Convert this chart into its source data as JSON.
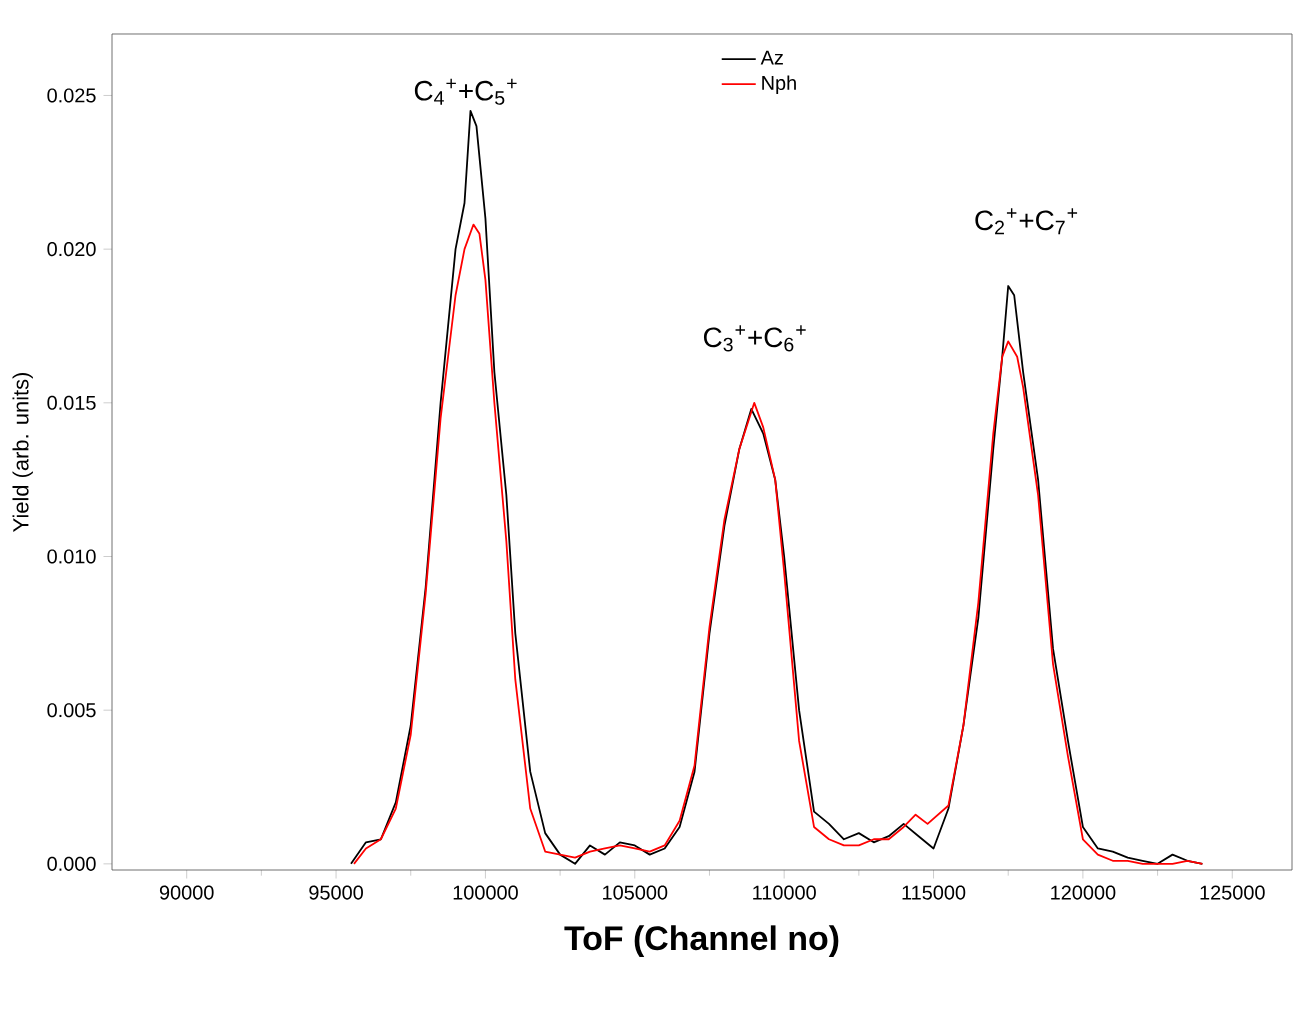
{
  "chart_data": {
    "type": "line",
    "xlabel": "ToF (Channel no)",
    "ylabel": "Yield (arb. units)",
    "xlim": [
      87500,
      127000
    ],
    "ylim": [
      -0.0002,
      0.027
    ],
    "xticks": [
      90000,
      95000,
      100000,
      105000,
      110000,
      115000,
      120000,
      125000
    ],
    "yticks": [
      {
        "value": 0,
        "label": "0.000"
      },
      {
        "value": 0.005,
        "label": "0.005"
      },
      {
        "value": 0.01,
        "label": "0.010"
      },
      {
        "value": 0.015,
        "label": "0.015"
      },
      {
        "value": 0.02,
        "label": "0.020"
      },
      {
        "value": 0.025,
        "label": "0.025"
      }
    ],
    "legend": "top",
    "grid": false,
    "marker": "none",
    "line_style": "solid",
    "annotations": [
      "C$_{4}$$^{+}$+C$_{5}$$^{+}$",
      "C$_{3}$$^{+}$+C$_{6}$$^{+}$",
      "C$_{2}$$^{+}$+C$_{7}$$^{+}$"
    ],
    "series": [
      {
        "name": "Az",
        "color": "#000000",
        "x": [
          95500,
          96000,
          96500,
          97000,
          97500,
          98000,
          98500,
          99000,
          99300,
          99500,
          99700,
          100000,
          100300,
          100700,
          101000,
          101500,
          102000,
          102500,
          103000,
          103500,
          104000,
          104500,
          105000,
          105500,
          106000,
          106500,
          107000,
          107500,
          108000,
          108500,
          108900,
          109300,
          109700,
          110000,
          110500,
          111000,
          111500,
          112000,
          112500,
          113000,
          113500,
          114000,
          114500,
          115000,
          115500,
          116000,
          116500,
          117000,
          117300,
          117500,
          117700,
          118000,
          118500,
          119000,
          119500,
          120000,
          120500,
          121000,
          121500,
          122000,
          122500,
          123000,
          123500,
          124000
        ],
        "values": [
          0,
          0.0007,
          0.0008,
          0.002,
          0.0045,
          0.009,
          0.015,
          0.02,
          0.0215,
          0.0245,
          0.024,
          0.021,
          0.016,
          0.012,
          0.0075,
          0.003,
          0.001,
          0.0003,
          0,
          0.0006,
          0.0003,
          0.0007,
          0.0006,
          0.0003,
          0.0005,
          0.0012,
          0.003,
          0.0075,
          0.011,
          0.0135,
          0.0148,
          0.014,
          0.0125,
          0.01,
          0.005,
          0.0017,
          0.0013,
          0.0008,
          0.001,
          0.0007,
          0.0009,
          0.0013,
          0.0009,
          0.0005,
          0.0018,
          0.0045,
          0.008,
          0.0135,
          0.0165,
          0.0188,
          0.0185,
          0.016,
          0.0125,
          0.007,
          0.004,
          0.0012,
          0.0005,
          0.0004,
          0.0002,
          0.0001,
          0,
          0.0003,
          0.0001,
          0
        ]
      },
      {
        "name": "Nph",
        "color": "#ff0000",
        "x": [
          95600,
          96000,
          96500,
          97000,
          97500,
          98000,
          98500,
          99000,
          99300,
          99600,
          99800,
          100000,
          100300,
          100700,
          101000,
          101500,
          102000,
          102500,
          103000,
          103500,
          104000,
          104500,
          105000,
          105500,
          106000,
          106500,
          107000,
          107500,
          108000,
          108500,
          109000,
          109300,
          109700,
          110000,
          110500,
          111000,
          111500,
          112000,
          112500,
          113000,
          113500,
          114000,
          114400,
          114800,
          115500,
          116000,
          116500,
          117000,
          117300,
          117500,
          117800,
          118000,
          118500,
          119000,
          119500,
          120000,
          120500,
          121000,
          121500,
          122000,
          122500,
          123000,
          123500,
          124000
        ],
        "values": [
          0,
          0.0005,
          0.0008,
          0.0018,
          0.0042,
          0.0088,
          0.0145,
          0.0185,
          0.02,
          0.0208,
          0.0205,
          0.019,
          0.015,
          0.0105,
          0.006,
          0.0018,
          0.0004,
          0.0003,
          0.0002,
          0.0004,
          0.0005,
          0.0006,
          0.0005,
          0.0004,
          0.0006,
          0.0014,
          0.0032,
          0.0077,
          0.0112,
          0.0135,
          0.015,
          0.0142,
          0.0125,
          0.0095,
          0.004,
          0.0012,
          0.0008,
          0.0006,
          0.0006,
          0.0008,
          0.0008,
          0.0012,
          0.0016,
          0.0013,
          0.0019,
          0.0045,
          0.0085,
          0.014,
          0.0165,
          0.017,
          0.0165,
          0.0155,
          0.012,
          0.0065,
          0.0035,
          0.0008,
          0.0003,
          0.0001,
          0.0001,
          0,
          0,
          0,
          0.0001,
          0
        ]
      }
    ]
  }
}
